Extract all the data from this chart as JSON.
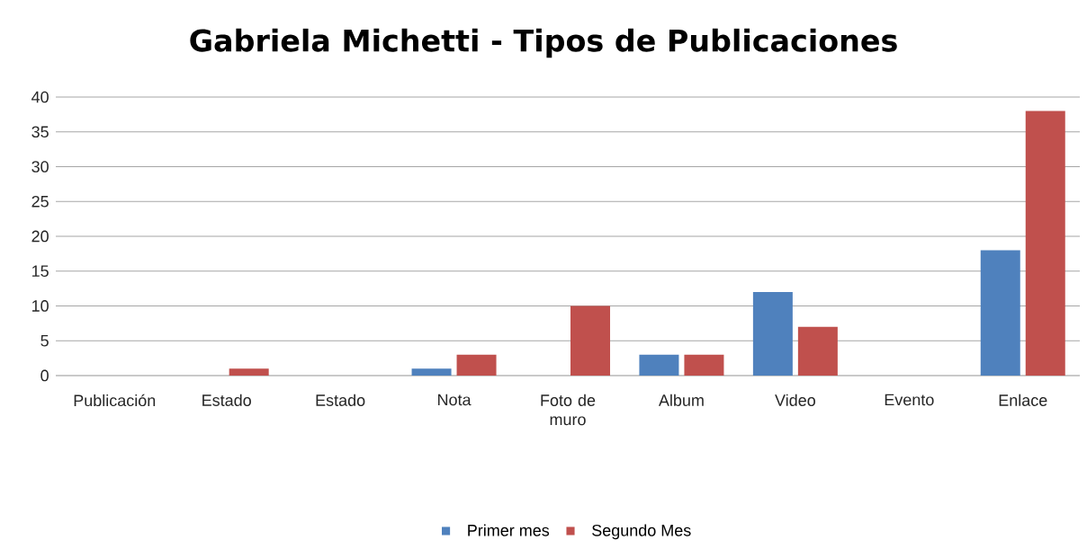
{
  "chart_data": {
    "type": "bar",
    "title": "Gabriela Michetti - Tipos de Publicaciones",
    "categories": [
      "Publicación",
      "Estado",
      "Estado",
      "Nota",
      "Foto de muro",
      "Album",
      "Video",
      "Evento",
      "Enlace"
    ],
    "series": [
      {
        "name": "Primer mes",
        "color": "#4f81bd",
        "values": [
          0,
          0,
          0,
          1,
          0,
          3,
          12,
          0,
          18
        ]
      },
      {
        "name": "Segundo Mes",
        "color": "#c0504d",
        "values": [
          0,
          1,
          0,
          3,
          10,
          3,
          7,
          0,
          38
        ]
      }
    ],
    "ylim": [
      0,
      40
    ],
    "yticks": [
      0,
      5,
      10,
      15,
      20,
      25,
      30,
      35,
      40
    ],
    "grid": "y",
    "legend": "bottom"
  }
}
